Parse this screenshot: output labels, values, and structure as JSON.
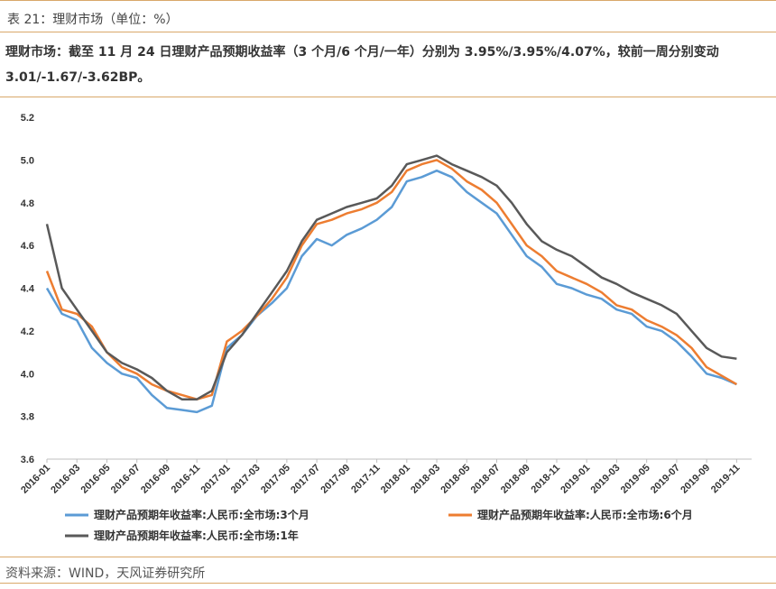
{
  "caption": "表 21：理财市场（单位：%）",
  "summary_line1": "理财市场：截至 11 月 24 日理财产品预期收益率（3 个月/6 个月/一年）分别为 3.95%/3.95%/4.07%，较前一周分别变动",
  "summary_line2": "3.01/-1.67/-3.62BP。",
  "source": "资料来源：WIND，天风证券研究所",
  "chart_data": {
    "type": "line",
    "title": "",
    "xlabel": "",
    "ylabel": "",
    "ylim": [
      3.6,
      5.2
    ],
    "yticks": [
      "3.6",
      "3.8",
      "4.0",
      "4.2",
      "4.4",
      "4.6",
      "4.8",
      "5.0",
      "5.2"
    ],
    "xticks": [
      "2016-01",
      "2016-03",
      "2016-05",
      "2016-07",
      "2016-09",
      "2016-11",
      "2017-01",
      "2017-03",
      "2017-05",
      "2017-07",
      "2017-09",
      "2017-11",
      "2018-01",
      "2018-03",
      "2018-05",
      "2018-07",
      "2018-09",
      "2018-11",
      "2019-01",
      "2019-03",
      "2019-05",
      "2019-07",
      "2019-09",
      "2019-11"
    ],
    "xlim": [
      "2016-01",
      "2019-12"
    ],
    "grid": false,
    "legend_position": "bottom",
    "series": [
      {
        "name": "理财产品预期年收益率:人民币:全市场:3个月",
        "color": "#5b9bd5",
        "points": [
          [
            "2016-01",
            4.4
          ],
          [
            "2016-02",
            4.28
          ],
          [
            "2016-03",
            4.25
          ],
          [
            "2016-04",
            4.12
          ],
          [
            "2016-05",
            4.05
          ],
          [
            "2016-06",
            4.0
          ],
          [
            "2016-07",
            3.98
          ],
          [
            "2016-08",
            3.9
          ],
          [
            "2016-09",
            3.84
          ],
          [
            "2016-10",
            3.83
          ],
          [
            "2016-11",
            3.82
          ],
          [
            "2016-12",
            3.85
          ],
          [
            "2017-01",
            4.12
          ],
          [
            "2017-02",
            4.18
          ],
          [
            "2017-03",
            4.27
          ],
          [
            "2017-04",
            4.33
          ],
          [
            "2017-05",
            4.4
          ],
          [
            "2017-06",
            4.55
          ],
          [
            "2017-07",
            4.63
          ],
          [
            "2017-08",
            4.6
          ],
          [
            "2017-09",
            4.65
          ],
          [
            "2017-10",
            4.68
          ],
          [
            "2017-11",
            4.72
          ],
          [
            "2017-12",
            4.78
          ],
          [
            "2018-01",
            4.9
          ],
          [
            "2018-02",
            4.92
          ],
          [
            "2018-03",
            4.95
          ],
          [
            "2018-04",
            4.92
          ],
          [
            "2018-05",
            4.85
          ],
          [
            "2018-06",
            4.8
          ],
          [
            "2018-07",
            4.75
          ],
          [
            "2018-08",
            4.65
          ],
          [
            "2018-09",
            4.55
          ],
          [
            "2018-10",
            4.5
          ],
          [
            "2018-11",
            4.42
          ],
          [
            "2018-12",
            4.4
          ],
          [
            "2019-01",
            4.37
          ],
          [
            "2019-02",
            4.35
          ],
          [
            "2019-03",
            4.3
          ],
          [
            "2019-04",
            4.28
          ],
          [
            "2019-05",
            4.22
          ],
          [
            "2019-06",
            4.2
          ],
          [
            "2019-07",
            4.15
          ],
          [
            "2019-08",
            4.08
          ],
          [
            "2019-09",
            4.0
          ],
          [
            "2019-10",
            3.98
          ],
          [
            "2019-11",
            3.95
          ]
        ]
      },
      {
        "name": "理财产品预期年收益率:人民币:全市场:6个月",
        "color": "#ed7d31",
        "points": [
          [
            "2016-01",
            4.48
          ],
          [
            "2016-02",
            4.3
          ],
          [
            "2016-03",
            4.28
          ],
          [
            "2016-04",
            4.22
          ],
          [
            "2016-05",
            4.1
          ],
          [
            "2016-06",
            4.03
          ],
          [
            "2016-07",
            4.0
          ],
          [
            "2016-08",
            3.95
          ],
          [
            "2016-09",
            3.92
          ],
          [
            "2016-10",
            3.9
          ],
          [
            "2016-11",
            3.88
          ],
          [
            "2016-12",
            3.9
          ],
          [
            "2017-01",
            4.15
          ],
          [
            "2017-02",
            4.2
          ],
          [
            "2017-03",
            4.27
          ],
          [
            "2017-04",
            4.35
          ],
          [
            "2017-05",
            4.45
          ],
          [
            "2017-06",
            4.6
          ],
          [
            "2017-07",
            4.7
          ],
          [
            "2017-08",
            4.72
          ],
          [
            "2017-09",
            4.75
          ],
          [
            "2017-10",
            4.77
          ],
          [
            "2017-11",
            4.8
          ],
          [
            "2017-12",
            4.85
          ],
          [
            "2018-01",
            4.95
          ],
          [
            "2018-02",
            4.98
          ],
          [
            "2018-03",
            5.0
          ],
          [
            "2018-04",
            4.96
          ],
          [
            "2018-05",
            4.9
          ],
          [
            "2018-06",
            4.86
          ],
          [
            "2018-07",
            4.8
          ],
          [
            "2018-08",
            4.7
          ],
          [
            "2018-09",
            4.6
          ],
          [
            "2018-10",
            4.55
          ],
          [
            "2018-11",
            4.48
          ],
          [
            "2018-12",
            4.45
          ],
          [
            "2019-01",
            4.42
          ],
          [
            "2019-02",
            4.38
          ],
          [
            "2019-03",
            4.32
          ],
          [
            "2019-04",
            4.3
          ],
          [
            "2019-05",
            4.25
          ],
          [
            "2019-06",
            4.22
          ],
          [
            "2019-07",
            4.18
          ],
          [
            "2019-08",
            4.12
          ],
          [
            "2019-09",
            4.03
          ],
          [
            "2019-10",
            3.99
          ],
          [
            "2019-11",
            3.95
          ]
        ]
      },
      {
        "name": "理财产品预期年收益率:人民币:全市场:1年",
        "color": "#595959",
        "points": [
          [
            "2016-01",
            4.7
          ],
          [
            "2016-02",
            4.4
          ],
          [
            "2016-03",
            4.3
          ],
          [
            "2016-04",
            4.2
          ],
          [
            "2016-05",
            4.1
          ],
          [
            "2016-06",
            4.05
          ],
          [
            "2016-07",
            4.02
          ],
          [
            "2016-08",
            3.98
          ],
          [
            "2016-09",
            3.92
          ],
          [
            "2016-10",
            3.88
          ],
          [
            "2016-11",
            3.88
          ],
          [
            "2016-12",
            3.92
          ],
          [
            "2017-01",
            4.1
          ],
          [
            "2017-02",
            4.18
          ],
          [
            "2017-03",
            4.28
          ],
          [
            "2017-04",
            4.38
          ],
          [
            "2017-05",
            4.48
          ],
          [
            "2017-06",
            4.62
          ],
          [
            "2017-07",
            4.72
          ],
          [
            "2017-08",
            4.75
          ],
          [
            "2017-09",
            4.78
          ],
          [
            "2017-10",
            4.8
          ],
          [
            "2017-11",
            4.82
          ],
          [
            "2017-12",
            4.88
          ],
          [
            "2018-01",
            4.98
          ],
          [
            "2018-02",
            5.0
          ],
          [
            "2018-03",
            5.02
          ],
          [
            "2018-04",
            4.98
          ],
          [
            "2018-05",
            4.95
          ],
          [
            "2018-06",
            4.92
          ],
          [
            "2018-07",
            4.88
          ],
          [
            "2018-08",
            4.8
          ],
          [
            "2018-09",
            4.7
          ],
          [
            "2018-10",
            4.62
          ],
          [
            "2018-11",
            4.58
          ],
          [
            "2018-12",
            4.55
          ],
          [
            "2019-01",
            4.5
          ],
          [
            "2019-02",
            4.45
          ],
          [
            "2019-03",
            4.42
          ],
          [
            "2019-04",
            4.38
          ],
          [
            "2019-05",
            4.35
          ],
          [
            "2019-06",
            4.32
          ],
          [
            "2019-07",
            4.28
          ],
          [
            "2019-08",
            4.2
          ],
          [
            "2019-09",
            4.12
          ],
          [
            "2019-10",
            4.08
          ],
          [
            "2019-11",
            4.07
          ]
        ]
      }
    ]
  }
}
